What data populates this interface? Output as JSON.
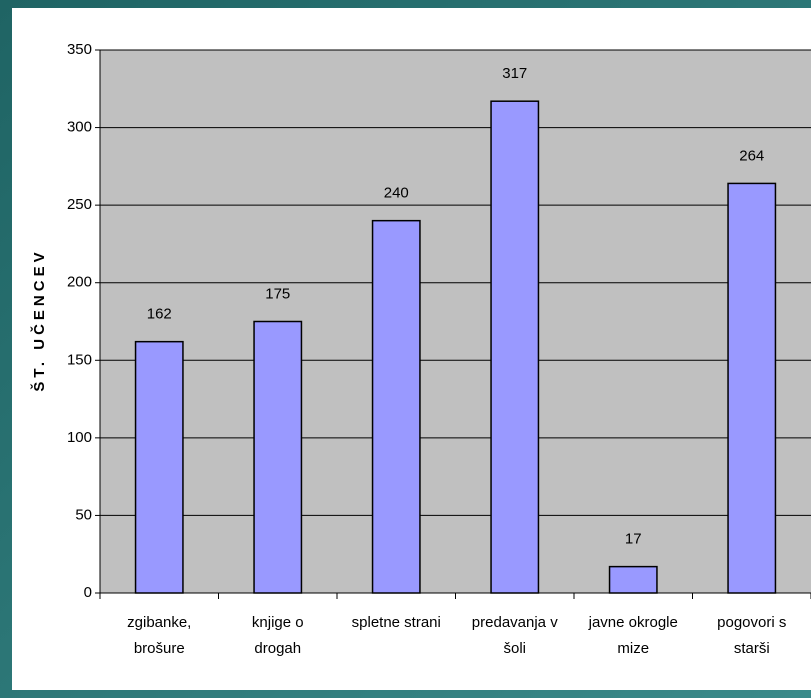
{
  "chart_data": {
    "type": "bar",
    "y_label": "ŠT. UČENCEV",
    "categories": [
      "zgibanke,\nbrošure",
      "knjige o\ndrogah",
      "spletne strani",
      "predavanja v\nšoli",
      "javne okrogle\nmize",
      "pogovori s\nstarši"
    ],
    "values": [
      162,
      175,
      240,
      317,
      17,
      264
    ],
    "color": "#9999ff",
    "ylim": [
      0,
      350
    ],
    "yticks": [
      0,
      50,
      100,
      150,
      200,
      250,
      300,
      350
    ],
    "grid": true
  }
}
